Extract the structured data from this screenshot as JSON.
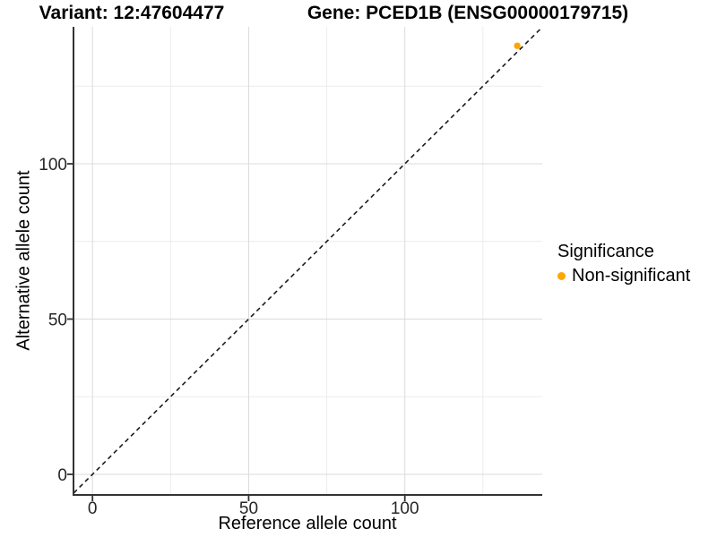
{
  "titles": {
    "variant": "Variant: 12:47604477",
    "gene": "Gene: PCED1B (ENSG00000179715)"
  },
  "axes": {
    "x_label": "Reference allele count",
    "y_label": "Alternative allele count",
    "x_tick_labels": [
      "0",
      "50",
      "100"
    ],
    "y_tick_labels": [
      "0",
      "50",
      "100"
    ]
  },
  "legend": {
    "title": "Significance",
    "items": [
      {
        "label": "Non-significant",
        "color": "#FFA500"
      }
    ]
  },
  "colors": {
    "point": "#FFA500",
    "axis_line": "#333333",
    "grid_major": "#DBDBDB",
    "grid_minor": "#ECECEC",
    "tick_text": "#262626",
    "identity_line": "#1A1A1A"
  },
  "chart_data": {
    "type": "scatter",
    "title": "Variant: 12:47604477 | Gene: PCED1B (ENSG00000179715)",
    "xlabel": "Reference allele count",
    "ylabel": "Alternative allele count",
    "xlim": [
      -6,
      144
    ],
    "ylim": [
      -6.5,
      144.5
    ],
    "x_major_ticks": [
      0,
      50,
      100
    ],
    "y_major_ticks": [
      0,
      50,
      100
    ],
    "x_minor_ticks": [
      25,
      75,
      125
    ],
    "y_minor_ticks": [
      25,
      75,
      125
    ],
    "grid": "major and minor gridlines, light gray on white background",
    "identity_line": {
      "intercept": 0,
      "slope": 1,
      "style": "dashed"
    },
    "series": [
      {
        "name": "Non-significant",
        "color": "#FFA500",
        "points": [
          {
            "x": 136,
            "y": 138
          }
        ]
      }
    ],
    "legend_position": "right"
  }
}
